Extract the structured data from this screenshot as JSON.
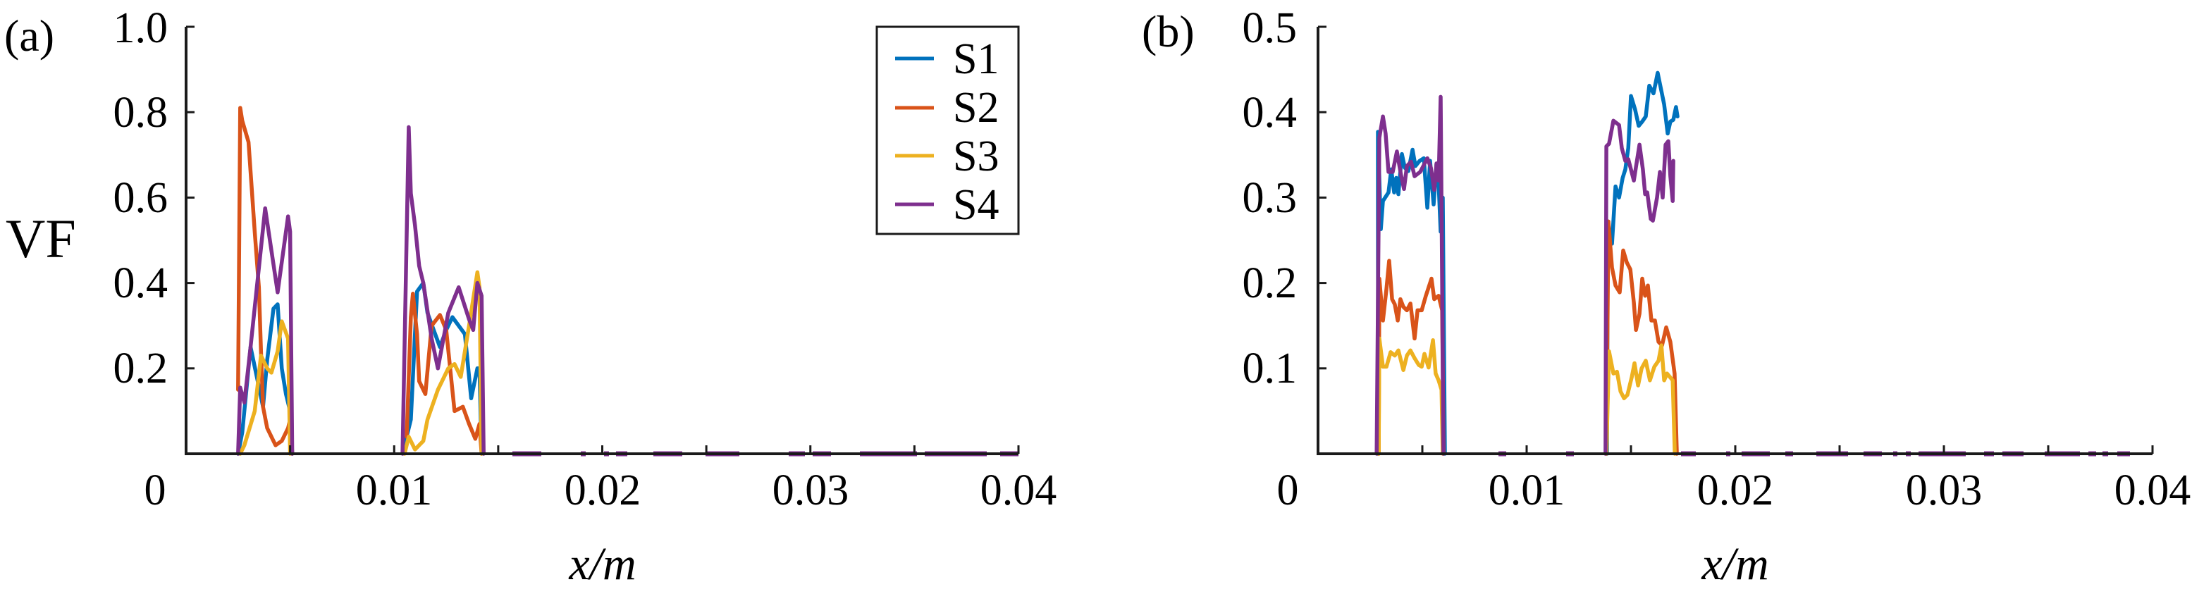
{
  "figure": {
    "panels": [
      {
        "label": "(a)",
        "ylabel": "VF",
        "xlabel": "x/m",
        "x_tick_labels": [
          "0",
          "0.01",
          "0.02",
          "0.03",
          "0.04"
        ],
        "y_tick_labels": [
          "0.2",
          "0.4",
          "0.6",
          "0.8",
          "1.0"
        ]
      },
      {
        "label": "(b)",
        "ylabel": "",
        "xlabel": "x/m",
        "x_tick_labels": [
          "0",
          "0.01",
          "0.02",
          "0.03",
          "0.04"
        ],
        "y_tick_labels": [
          "0.1",
          "0.2",
          "0.3",
          "0.4",
          "0.5"
        ]
      }
    ],
    "legend": [
      {
        "label": "S1",
        "color": "#0072BD"
      },
      {
        "label": "S2",
        "color": "#D95319"
      },
      {
        "label": "S3",
        "color": "#EDB120"
      },
      {
        "label": "S4",
        "color": "#7E2F8E"
      }
    ]
  },
  "chart_data": [
    {
      "type": "line",
      "title": "(a)",
      "xlabel": "x/m",
      "ylabel": "VF",
      "xlim": [
        0,
        0.04
      ],
      "ylim": [
        0,
        1.0
      ],
      "x_ticks": [
        0,
        0.005,
        0.01,
        0.015,
        0.02,
        0.025,
        0.03,
        0.035,
        0.04
      ],
      "x_tick_labels": [
        "0",
        "0.01",
        "0.02",
        "0.03",
        "0.04"
      ],
      "y_ticks": [
        0.2,
        0.4,
        0.6,
        0.8,
        1.0
      ],
      "grid": false,
      "legend_position": "upper right (inside)",
      "series": [
        {
          "name": "S1",
          "color": "#0072BD",
          "x": [
            0.0025,
            0.0027,
            0.0031,
            0.0034,
            0.0037,
            0.0039,
            0.0042,
            0.0044,
            0.0046,
            0.0048,
            0.005,
            0.0051,
            0.0105,
            0.0108,
            0.0111,
            0.0114,
            0.0116,
            0.0119,
            0.0122,
            0.0125,
            0.0128,
            0.0131,
            0.0134,
            0.0137,
            0.014,
            0.0141,
            0.0142
          ],
          "values": [
            0.0,
            0.05,
            0.25,
            0.18,
            0.11,
            0.22,
            0.34,
            0.35,
            0.2,
            0.14,
            0.1,
            0.0,
            0.02,
            0.08,
            0.38,
            0.4,
            0.33,
            0.29,
            0.25,
            0.29,
            0.32,
            0.3,
            0.28,
            0.13,
            0.2,
            0.2,
            0.0
          ]
        },
        {
          "name": "S2",
          "color": "#D95319",
          "x": [
            0.0025,
            0.0026,
            0.0027,
            0.003,
            0.0033,
            0.0035,
            0.0036,
            0.0037,
            0.0039,
            0.0043,
            0.0046,
            0.0049,
            0.005,
            0.0051,
            0.0106,
            0.0108,
            0.0109,
            0.0111,
            0.0112,
            0.0115,
            0.0118,
            0.0122,
            0.0125,
            0.0129,
            0.0133,
            0.0136,
            0.0139,
            0.0141,
            0.0142
          ],
          "values": [
            0.15,
            0.81,
            0.78,
            0.73,
            0.52,
            0.39,
            0.24,
            0.11,
            0.06,
            0.02,
            0.03,
            0.06,
            0.08,
            0.0,
            0.04,
            0.32,
            0.375,
            0.28,
            0.17,
            0.14,
            0.3,
            0.325,
            0.29,
            0.1,
            0.11,
            0.07,
            0.035,
            0.07,
            0.0
          ]
        },
        {
          "name": "S3",
          "color": "#EDB120",
          "x": [
            0.0026,
            0.0028,
            0.0033,
            0.0036,
            0.0039,
            0.0041,
            0.0044,
            0.0046,
            0.0049,
            0.005,
            0.0105,
            0.0107,
            0.011,
            0.0114,
            0.0116,
            0.0121,
            0.0126,
            0.0129,
            0.0132,
            0.0136,
            0.014,
            0.0141,
            0.0142
          ],
          "values": [
            0.0,
            0.02,
            0.1,
            0.23,
            0.2,
            0.19,
            0.24,
            0.31,
            0.27,
            0.0,
            0.0,
            0.04,
            0.01,
            0.03,
            0.08,
            0.15,
            0.2,
            0.21,
            0.18,
            0.3,
            0.425,
            0.39,
            0.0
          ]
        },
        {
          "name": "S4",
          "color": "#7E2F8E",
          "x": [
            0.0025,
            0.0026,
            0.0028,
            0.0031,
            0.0038,
            0.0044,
            0.0049,
            0.005,
            0.0051,
            0.0104,
            0.0107,
            0.0108,
            0.011,
            0.0112,
            0.0114,
            0.0118,
            0.0121,
            0.0126,
            0.0131,
            0.0136,
            0.0138,
            0.014,
            0.0142,
            0.0143
          ],
          "values": [
            0.0,
            0.155,
            0.12,
            0.25,
            0.575,
            0.378,
            0.556,
            0.52,
            0.0,
            0.0,
            0.765,
            0.61,
            0.535,
            0.44,
            0.4,
            0.27,
            0.2,
            0.33,
            0.39,
            0.315,
            0.29,
            0.4,
            0.37,
            0.0
          ]
        }
      ],
      "baseline_segments_S4": [
        [
          727,
          768
        ],
        [
          824,
          831
        ],
        [
          857,
          864
        ],
        [
          874,
          890
        ],
        [
          927,
          968
        ],
        [
          1001,
          1049
        ],
        [
          1119,
          1142
        ],
        [
          1153,
          1179
        ],
        [
          1220,
          1301
        ],
        [
          1312,
          1400
        ],
        [
          1419,
          1445
        ]
      ]
    },
    {
      "type": "line",
      "title": "(b)",
      "xlabel": "x/m",
      "ylabel": "",
      "xlim": [
        0,
        0.04
      ],
      "ylim": [
        0,
        0.5
      ],
      "x_ticks": [
        0,
        0.005,
        0.01,
        0.015,
        0.02,
        0.025,
        0.03,
        0.035,
        0.04
      ],
      "x_tick_labels": [
        "0",
        "0.01",
        "0.02",
        "0.03",
        "0.04"
      ],
      "y_ticks": [
        0.1,
        0.2,
        0.3,
        0.4,
        0.5
      ],
      "grid": false,
      "series": [
        {
          "name": "S1",
          "color": "#0072BD",
          "x": [
            0.00288,
            0.00287,
            0.00301,
            0.00311,
            0.00338,
            0.00351,
            0.00365,
            0.00375,
            0.00385,
            0.00402,
            0.00416,
            0.00433,
            0.00453,
            0.00467,
            0.00487,
            0.00507,
            0.00524,
            0.00537,
            0.00554,
            0.00568,
            0.00578,
            0.00588,
            0.00598,
            0.00608,
            0.01385,
            0.01389,
            0.01409,
            0.01426,
            0.01443,
            0.0146,
            0.01473,
            0.01487,
            0.015,
            0.0152,
            0.01537,
            0.01554,
            0.01571,
            0.01588,
            0.01608,
            0.01628,
            0.01659,
            0.01676,
            0.01689,
            0.01703,
            0.01716,
            0.01723
          ],
          "values": [
            0.0,
            0.377,
            0.263,
            0.296,
            0.306,
            0.333,
            0.306,
            0.323,
            0.304,
            0.351,
            0.335,
            0.331,
            0.356,
            0.337,
            0.343,
            0.346,
            0.288,
            0.343,
            0.292,
            0.339,
            0.317,
            0.26,
            0.3,
            0.0,
            0.0,
            0.272,
            0.246,
            0.313,
            0.3,
            0.323,
            0.333,
            0.358,
            0.419,
            0.403,
            0.384,
            0.389,
            0.395,
            0.431,
            0.422,
            0.446,
            0.409,
            0.375,
            0.389,
            0.391,
            0.406,
            0.395
          ]
        },
        {
          "name": "S2",
          "color": "#D95319",
          "x": [
            0.00291,
            0.00294,
            0.00311,
            0.00328,
            0.00341,
            0.00355,
            0.00368,
            0.00382,
            0.00395,
            0.00409,
            0.00426,
            0.00443,
            0.00463,
            0.00477,
            0.00497,
            0.00517,
            0.00544,
            0.00557,
            0.00578,
            0.00595,
            0.00602,
            0.01382,
            0.01392,
            0.01409,
            0.01426,
            0.01446,
            0.01463,
            0.0148,
            0.01497,
            0.01514,
            0.01524,
            0.01541,
            0.01554,
            0.01568,
            0.01581,
            0.01598,
            0.01615,
            0.01632,
            0.01649,
            0.01669,
            0.01689,
            0.01709,
            0.0172
          ],
          "values": [
            0.0,
            0.205,
            0.156,
            0.193,
            0.226,
            0.181,
            0.175,
            0.156,
            0.181,
            0.172,
            0.168,
            0.176,
            0.135,
            0.168,
            0.168,
            0.185,
            0.205,
            0.181,
            0.185,
            0.168,
            0.0,
            0.0,
            0.272,
            0.218,
            0.197,
            0.189,
            0.238,
            0.224,
            0.216,
            0.177,
            0.145,
            0.164,
            0.205,
            0.185,
            0.197,
            0.156,
            0.156,
            0.131,
            0.127,
            0.148,
            0.131,
            0.094,
            0.0
          ]
        },
        {
          "name": "S3",
          "color": "#EDB120",
          "x": [
            0.00291,
            0.00294,
            0.00311,
            0.00328,
            0.00348,
            0.00368,
            0.00385,
            0.00409,
            0.00426,
            0.00443,
            0.00463,
            0.00483,
            0.00497,
            0.0051,
            0.0053,
            0.00551,
            0.00564,
            0.00578,
            0.00592,
            0.00598,
            0.01382,
            0.01395,
            0.01416,
            0.01433,
            0.0145,
            0.01467,
            0.01483,
            0.01504,
            0.01517,
            0.01534,
            0.01551,
            0.01571,
            0.01591,
            0.01612,
            0.01632,
            0.01646,
            0.01659,
            0.01673,
            0.017,
            0.0171
          ],
          "values": [
            0.0,
            0.135,
            0.102,
            0.102,
            0.119,
            0.115,
            0.121,
            0.098,
            0.115,
            0.121,
            0.112,
            0.104,
            0.102,
            0.117,
            0.101,
            0.133,
            0.094,
            0.086,
            0.075,
            0.0,
            0.0,
            0.12,
            0.094,
            0.096,
            0.073,
            0.065,
            0.069,
            0.09,
            0.106,
            0.08,
            0.1,
            0.109,
            0.086,
            0.102,
            0.109,
            0.127,
            0.086,
            0.094,
            0.086,
            0.0
          ]
        },
        {
          "name": "S4",
          "color": "#7E2F8E",
          "x": [
            0.00281,
            0.00294,
            0.00311,
            0.00324,
            0.00338,
            0.00358,
            0.00378,
            0.00399,
            0.00412,
            0.00426,
            0.00446,
            0.00463,
            0.0049,
            0.00524,
            0.00541,
            0.00557,
            0.00568,
            0.00578,
            0.00588,
            0.00595,
            0.00601,
            0.01378,
            0.01382,
            0.01395,
            0.01416,
            0.01443,
            0.01456,
            0.01473,
            0.01487,
            0.01514,
            0.01541,
            0.01557,
            0.01568,
            0.01578,
            0.01595,
            0.01605,
            0.01625,
            0.01639,
            0.01652,
            0.01666,
            0.01679,
            0.01689,
            0.017,
            0.01703
          ],
          "values": [
            0.0,
            0.37,
            0.395,
            0.375,
            0.33,
            0.33,
            0.354,
            0.325,
            0.31,
            0.337,
            0.342,
            0.325,
            0.33,
            0.346,
            0.335,
            0.309,
            0.34,
            0.32,
            0.418,
            0.2,
            0.0,
            0.0,
            0.36,
            0.363,
            0.39,
            0.385,
            0.358,
            0.343,
            0.345,
            0.32,
            0.362,
            0.333,
            0.304,
            0.306,
            0.275,
            0.273,
            0.3,
            0.33,
            0.3,
            0.362,
            0.366,
            0.325,
            0.296,
            0.343
          ]
        }
      ],
      "baseline_segments_S4": [
        [
          2126,
          2137
        ],
        [
          2222,
          2233
        ],
        [
          2385,
          2406
        ],
        [
          2449,
          2455
        ],
        [
          2471,
          2511
        ],
        [
          2533,
          2544
        ],
        [
          2577,
          2622
        ],
        [
          2644,
          2670
        ],
        [
          2686,
          2692
        ],
        [
          2704,
          2711
        ],
        [
          2722,
          2789
        ],
        [
          2815,
          2829
        ],
        [
          2841,
          2871
        ],
        [
          2901,
          2951
        ],
        [
          2963,
          2974
        ],
        [
          2983,
          2991
        ],
        [
          3004,
          3022
        ]
      ]
    }
  ]
}
